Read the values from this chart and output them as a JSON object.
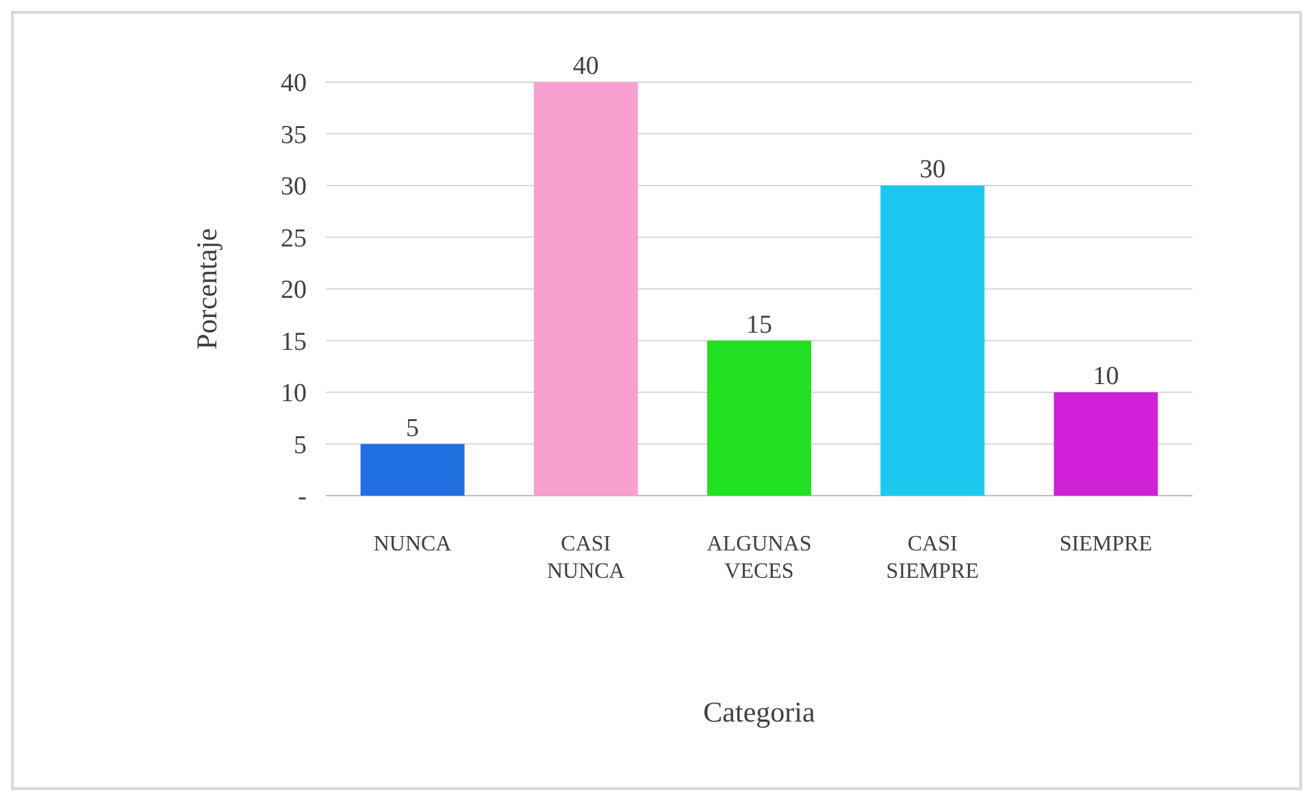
{
  "chart_data": {
    "type": "bar",
    "xlabel": "Categoria",
    "ylabel": "Porcentaje",
    "categories": [
      "NUNCA",
      "CASI NUNCA",
      "ALGUNAS VECES",
      "CASI SIEMPRE",
      "SIEMPRE"
    ],
    "values": [
      5,
      40,
      15,
      30,
      10
    ],
    "colors": [
      "#1f6fe0",
      "#f7a0d0",
      "#22e022",
      "#1cc8f0",
      "#d020d8"
    ],
    "ylim": [
      0,
      40
    ],
    "yticks": [
      {
        "value": 0,
        "label": "-"
      },
      5,
      10,
      15,
      20,
      25,
      30,
      35,
      40
    ],
    "grid": "y",
    "data_labels": true
  }
}
